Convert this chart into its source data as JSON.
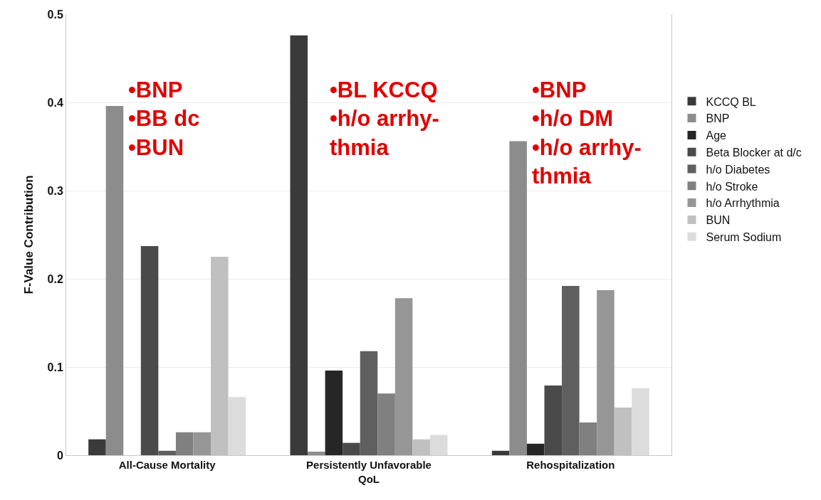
{
  "chart_data": {
    "type": "bar",
    "ylabel": "F-Value Contribution",
    "categories": [
      "All-Cause Mortality",
      "Persistently Unfavorable QoL",
      "Rehospitalization"
    ],
    "series": [
      {
        "name": "KCCQ BL",
        "color": "#3a3a3a",
        "values": [
          0.018,
          0.476,
          0.005
        ]
      },
      {
        "name": "BNP",
        "color": "#8c8c8c",
        "values": [
          0.396,
          0.004,
          0.356
        ]
      },
      {
        "name": "Age",
        "color": "#262626",
        "values": [
          0,
          0.096,
          0.013
        ]
      },
      {
        "name": "Beta Blocker at d/c",
        "color": "#4a4a4a",
        "values": [
          0.237,
          0.014,
          0.079
        ]
      },
      {
        "name": "h/o Diabetes",
        "color": "#5f5f5f",
        "values": [
          0.005,
          0.118,
          0.192
        ]
      },
      {
        "name": "h/o Stroke",
        "color": "#808080",
        "values": [
          0.026,
          0.07,
          0.037
        ]
      },
      {
        "name": "h/o Arrhythmia",
        "color": "#969696",
        "values": [
          0.026,
          0.178,
          0.187
        ]
      },
      {
        "name": "BUN",
        "color": "#c0c0c0",
        "values": [
          0.225,
          0.018,
          0.054
        ]
      },
      {
        "name": "Serum Sodium",
        "color": "#dcdcdc",
        "values": [
          0.066,
          0.023,
          0.076
        ]
      }
    ],
    "ylim": [
      0,
      0.5
    ],
    "yticks": [
      0,
      0.1,
      0.2,
      0.3,
      0.4,
      0.5
    ],
    "grid": "y",
    "legend": "right",
    "annotations": [
      "•BNP\n•BB dc\n•BUN",
      "•BL KCCQ\n•h/o arrhy-\nthmia",
      "•BNP\n•h/o DM\n•h/o arrhy-\nthmia"
    ]
  }
}
